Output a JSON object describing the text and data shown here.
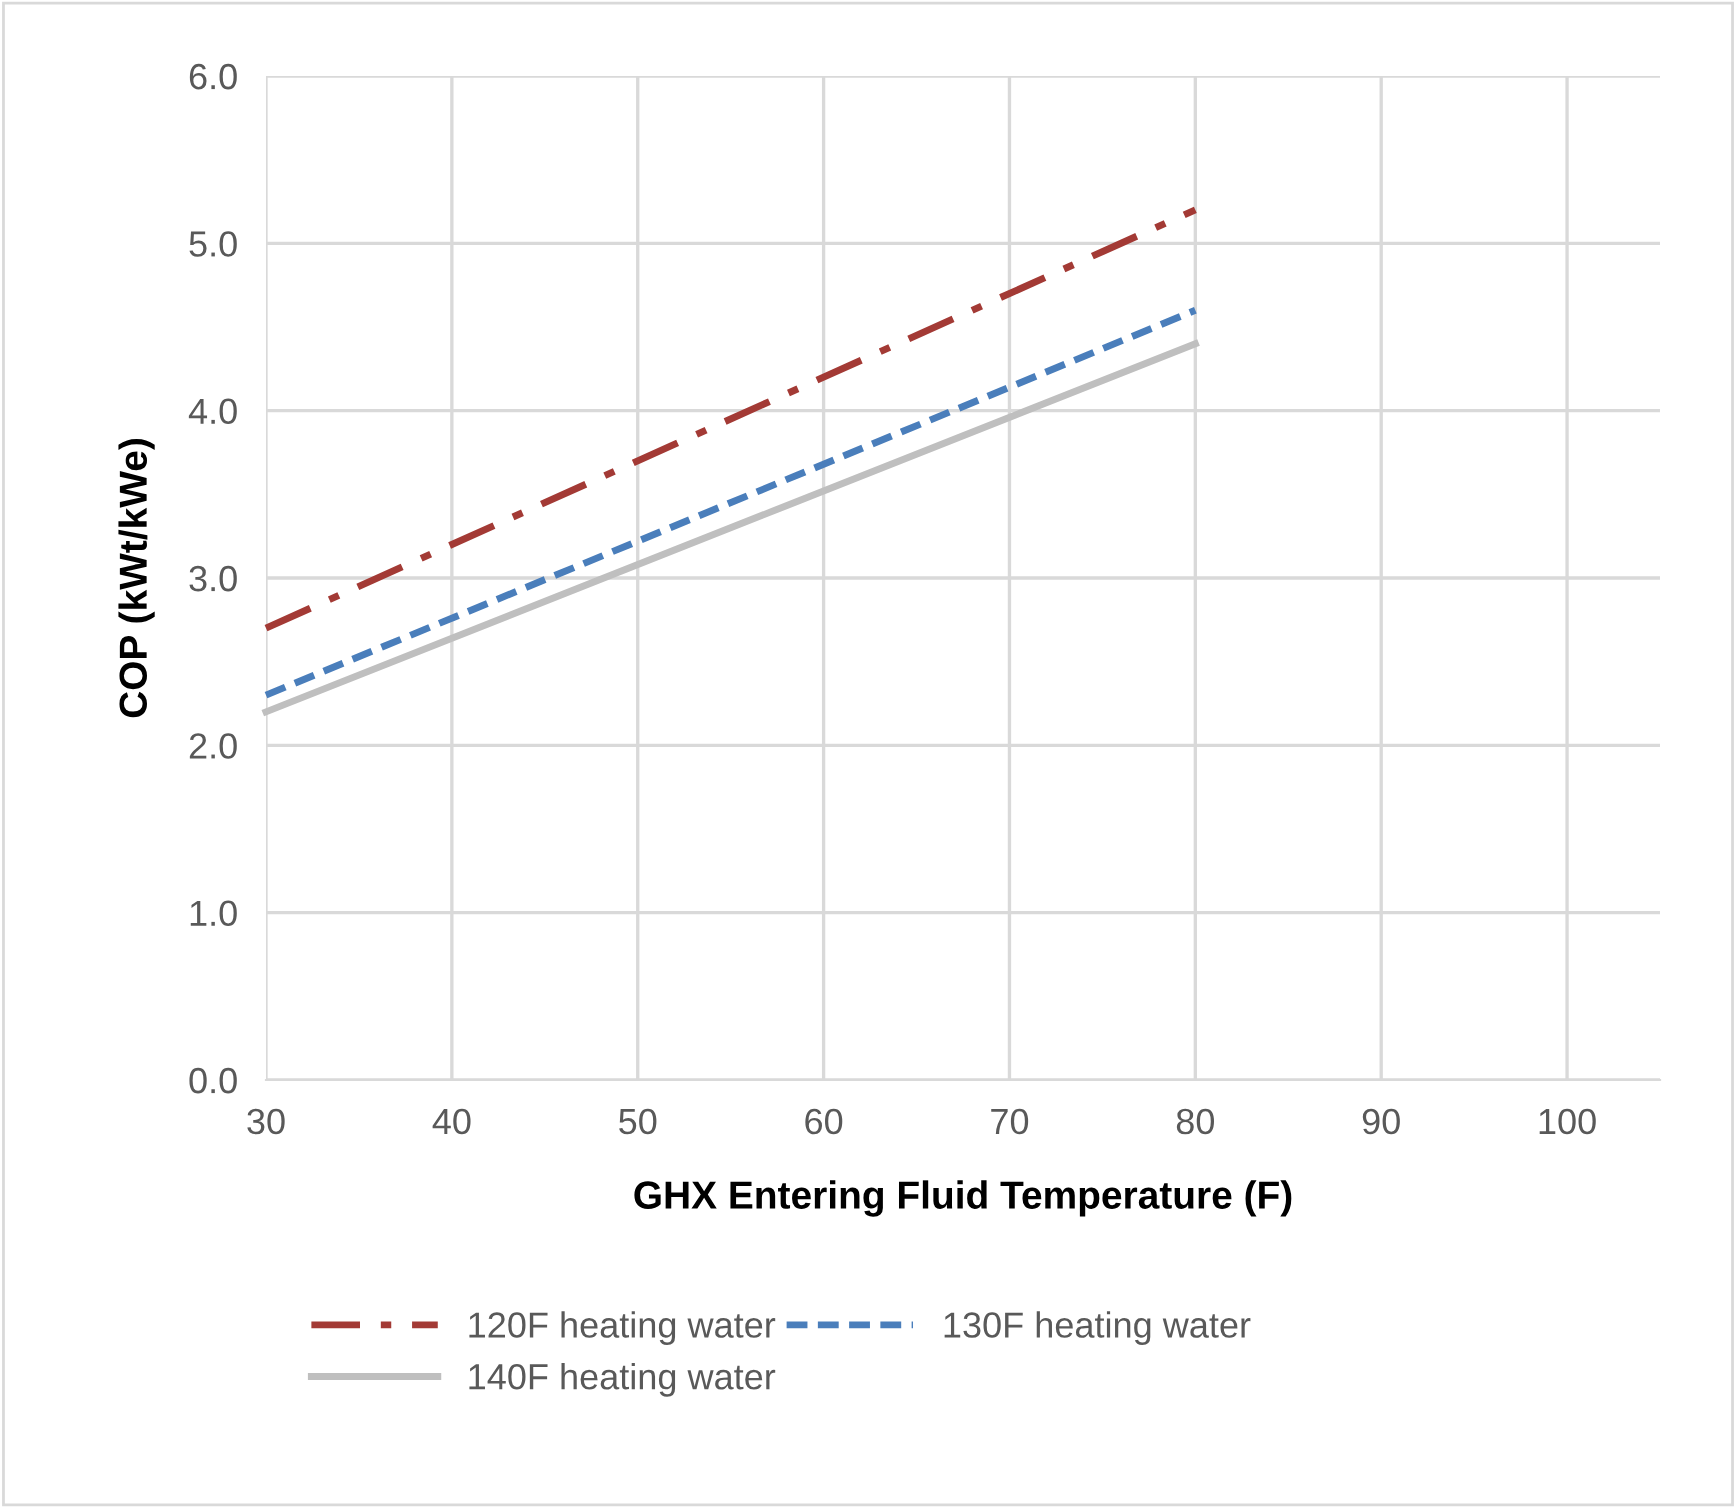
{
  "chart_data": {
    "type": "line",
    "xlabel": "GHX Entering Fluid Temperature (F)",
    "ylabel": "COP (kWt/kWe)",
    "xlim": [
      30,
      105
    ],
    "xticks": [
      30,
      40,
      50,
      60,
      70,
      80,
      90,
      100
    ],
    "ylim": [
      0,
      6
    ],
    "yticks": [
      {
        "value": 0,
        "label": "0.0"
      },
      {
        "value": 1,
        "label": "1.0"
      },
      {
        "value": 2,
        "label": "2.0"
      },
      {
        "value": 3,
        "label": "3.0"
      },
      {
        "value": 4,
        "label": "4.0"
      },
      {
        "value": 5,
        "label": "5.0"
      },
      {
        "value": 6,
        "label": "6.0"
      }
    ],
    "x": [
      30,
      80
    ],
    "grid": true,
    "legend": "bottom",
    "marker": "none",
    "series": [
      {
        "name": "120F heating water",
        "color": "#a33a35",
        "line_style": "dashdot",
        "values": [
          2.7,
          5.2
        ]
      },
      {
        "name": "130F heating water",
        "color": "#4a7ebb",
        "line_style": "dashed",
        "values": [
          2.3,
          4.6
        ]
      },
      {
        "name": "140F heating water",
        "color": "#bfbfbf",
        "line_style": "solid",
        "values": [
          2.2,
          4.4
        ]
      }
    ]
  }
}
